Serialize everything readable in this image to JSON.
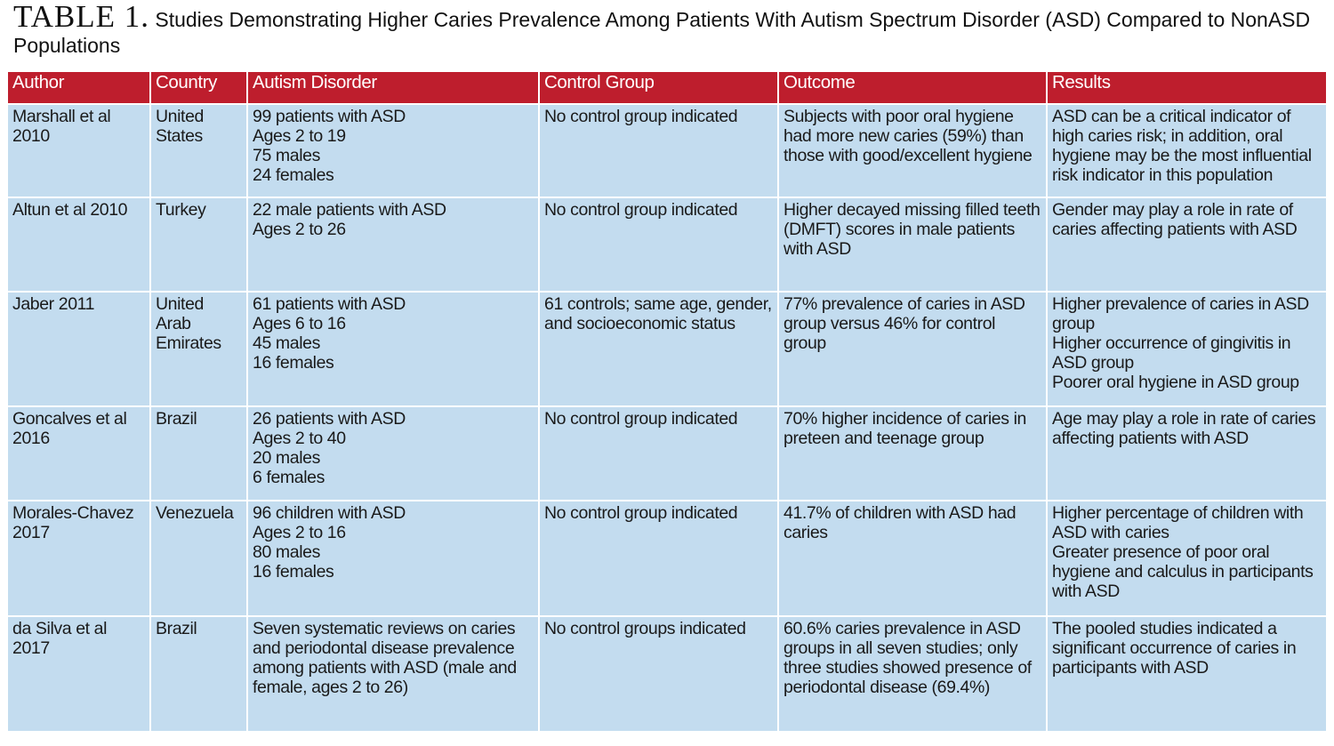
{
  "title": {
    "label": "TABLE 1.",
    "text": "Studies Demonstrating Higher Caries Prevalence Among Patients With Autism Spectrum Disorder (ASD) Compared to NonASD Populations"
  },
  "colors": {
    "header": "#be1e2d",
    "cell": "#c3dcef"
  },
  "columns": [
    "Author",
    "Country",
    "Autism Disorder",
    "Control Group",
    "Outcome",
    "Results"
  ],
  "rows": [
    [
      [
        "Marshall et al 2010"
      ],
      [
        "United States"
      ],
      [
        "99 patients with ASD",
        "Ages 2 to 19",
        "75 males",
        "24 females"
      ],
      [
        "No control group indicated"
      ],
      [
        "Subjects with poor oral hygiene had more new caries (59%) than those with good/excellent hygiene"
      ],
      [
        "ASD can be a critical indicator of high caries risk; in addition, oral hygiene may be the most influential risk indicator in this population"
      ]
    ],
    [
      [
        "Altun et al 2010"
      ],
      [
        "Turkey"
      ],
      [
        "22 male patients with ASD",
        "Ages 2 to 26"
      ],
      [
        "No control group indicated"
      ],
      [
        "Higher decayed missing filled teeth (DMFT) scores in male patients with ASD"
      ],
      [
        "Gender may play a role in rate of caries affecting patients with ASD"
      ]
    ],
    [
      [
        "Jaber 2011"
      ],
      [
        "United Arab Emirates"
      ],
      [
        "61 patients with ASD",
        "Ages 6 to 16",
        "45 males",
        "16 females"
      ],
      [
        "61 controls; same age, gender, and socioeconomic status"
      ],
      [
        "77% prevalence of caries in ASD group versus 46% for control group"
      ],
      [
        "Higher prevalence of caries in ASD group",
        "Higher occurrence of gingivitis in ASD group",
        "Poorer oral hygiene in ASD group"
      ]
    ],
    [
      [
        "Goncalves et al 2016"
      ],
      [
        "Brazil"
      ],
      [
        "26 patients with ASD",
        "Ages 2 to 40",
        "20 males",
        "6 females"
      ],
      [
        "No control group indicated"
      ],
      [
        "70% higher incidence of caries in preteen and teenage group"
      ],
      [
        "Age may play a role in rate of caries affecting patients with ASD"
      ]
    ],
    [
      [
        "Morales-Chavez 2017"
      ],
      [
        "Venezuela"
      ],
      [
        "96 children with ASD",
        "Ages 2 to 16",
        "80 males",
        "16 females"
      ],
      [
        "No control group indicated"
      ],
      [
        "41.7% of children with ASD had caries"
      ],
      [
        "Higher percentage of children with ASD with caries",
        "Greater presence of poor oral hygiene and calculus in participants with ASD"
      ]
    ],
    [
      [
        "da Silva et al 2017"
      ],
      [
        "Brazil"
      ],
      [
        "Seven systematic reviews on caries and periodontal disease prevalence among patients with ASD (male and female, ages 2 to 26)"
      ],
      [
        "No control groups indicated"
      ],
      [
        "60.6% caries prevalence in ASD groups in all seven studies; only three studies showed presence of periodontal disease (69.4%)"
      ],
      [
        "The pooled studies indicated a significant occurrence of caries in participants with ASD"
      ]
    ]
  ]
}
